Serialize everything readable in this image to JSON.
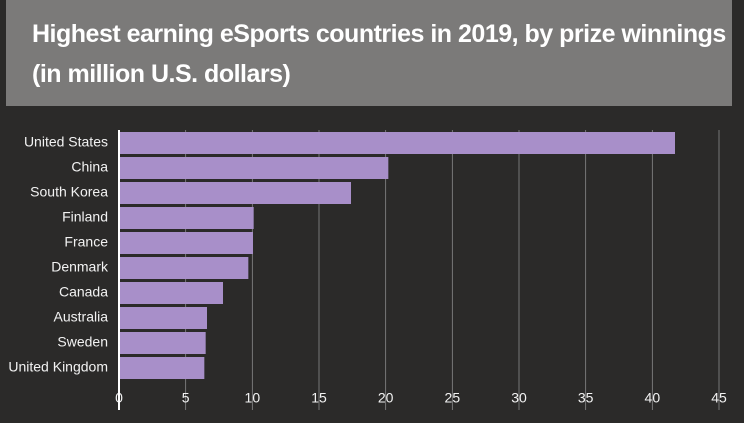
{
  "chart_data": {
    "type": "bar",
    "orientation": "horizontal",
    "title": "Highest earning eSports countries in 2019, by prize winnings (in million U.S. dollars)",
    "categories": [
      "United States",
      "China",
      "South Korea",
      "Finland",
      "France",
      "Denmark",
      "Canada",
      "Australia",
      "Sweden",
      "United Kingdom"
    ],
    "values": [
      41.7,
      20.2,
      17.4,
      10.1,
      10.05,
      9.7,
      7.8,
      6.6,
      6.5,
      6.4
    ],
    "color": "#a88fc9",
    "xlim": [
      0,
      45
    ],
    "xticks": [
      0,
      5,
      10,
      15,
      20,
      25,
      30,
      35,
      40,
      45
    ],
    "grid": true
  }
}
